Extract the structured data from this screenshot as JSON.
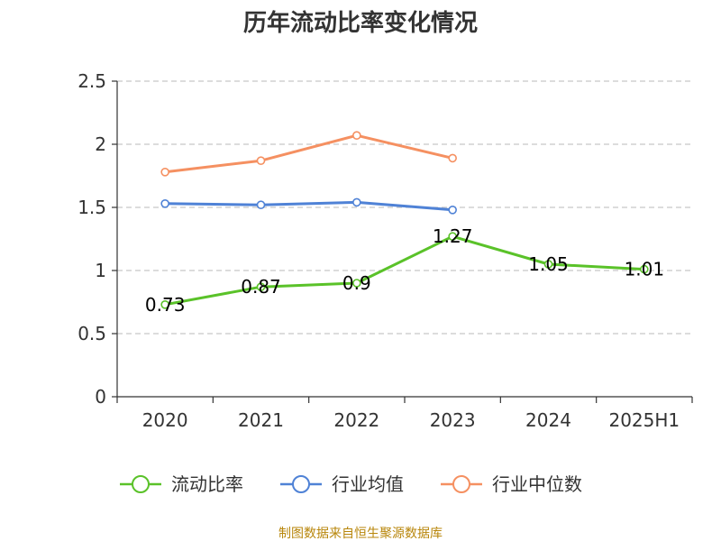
{
  "chart_data": {
    "type": "line",
    "title": "历年流动比率变化情况",
    "categories": [
      "2020",
      "2021",
      "2022",
      "2023",
      "2024",
      "2025H1"
    ],
    "ylim": [
      0,
      2.5
    ],
    "yticks": [
      "0",
      "0.5",
      "1",
      "1.5",
      "2",
      "2.5"
    ],
    "grid": true,
    "legend_position": "bottom",
    "series": [
      {
        "name": "流动比率",
        "color": "#5ac229",
        "values": [
          0.73,
          0.87,
          0.9,
          1.27,
          1.05,
          1.01
        ],
        "labels": [
          "0.73",
          "0.87",
          "0.9",
          "1.27",
          "1.05",
          "1.01"
        ]
      },
      {
        "name": "行业均值",
        "color": "#4f82d6",
        "values": [
          1.53,
          1.52,
          1.54,
          1.48,
          null,
          null
        ]
      },
      {
        "name": "行业中位数",
        "color": "#f59061",
        "values": [
          1.78,
          1.87,
          2.07,
          1.89,
          null,
          null
        ]
      }
    ]
  },
  "source_note": "制图数据来自恒生聚源数据库"
}
